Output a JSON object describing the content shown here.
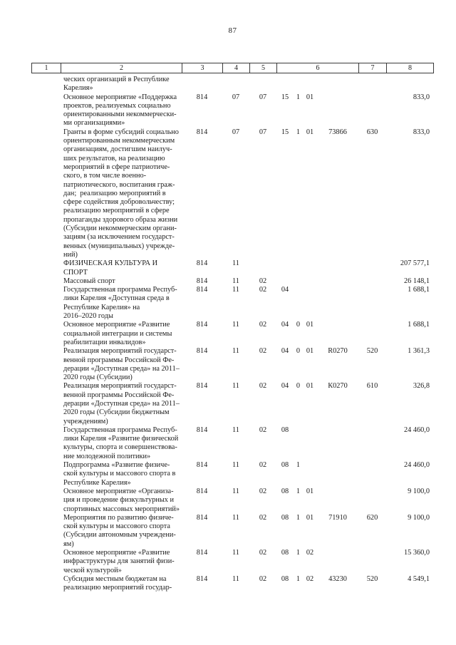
{
  "page": {
    "number": "87"
  },
  "table": {
    "headers": [
      "1",
      "2",
      "3",
      "4",
      "5",
      "6",
      "7",
      "8"
    ],
    "rows": [
      {
        "name": "ческих организаций в Республике\nКарелия»",
        "c3": "",
        "c4": "",
        "c5": "",
        "cs": [
          "",
          "",
          "",
          ""
        ],
        "c7": "",
        "c8": ""
      },
      {
        "name": "Основное мероприятие «Поддержка\nпроектов, реализуемых социально\nориентированными некоммерчески-\nми организациями»",
        "c3": "814",
        "c4": "07",
        "c5": "07",
        "cs": [
          "15",
          "1",
          "01",
          ""
        ],
        "c7": "",
        "c8": "833,0"
      },
      {
        "name": "Гранты в форме субсидий социально\nориентированным некоммерческим\nорганизациям, достигшим наилуч-\nших результатов, на реализацию\nмероприятий в сфере патриотиче-\nского, в том числе военно-\nпатриотического, воспитания граж-\nдан;  реализацию мероприятий в\nсфере содействия добровольчеству;\nреализацию мероприятий в сфере\nпропаганды здорового образа жизни\n(Субсидии некоммерческим органи-\nзациям (за исключением государст-\nвенных (муниципальных) учрежде-\nний)",
        "c3": "814",
        "c4": "07",
        "c5": "07",
        "cs": [
          "15",
          "1",
          "01",
          "73866"
        ],
        "c7": "630",
        "c8": "833,0"
      },
      {
        "name": "ФИЗИЧЕСКАЯ КУЛЬТУРА И\nСПОРТ",
        "c3": "814",
        "c4": "11",
        "c5": "",
        "cs": [
          "",
          "",
          "",
          ""
        ],
        "c7": "",
        "c8": "207 577,1"
      },
      {
        "name": "Массовый спорт",
        "c3": "814",
        "c4": "11",
        "c5": "02",
        "cs": [
          "",
          "",
          "",
          ""
        ],
        "c7": "",
        "c8": "26 148,1"
      },
      {
        "name": "Государственная программа Респуб-\nлики Карелия «Доступная среда в\nРеспублике Карелия» на\n2016–2020 годы",
        "c3": "814",
        "c4": "11",
        "c5": "02",
        "cs": [
          "04",
          "",
          "",
          ""
        ],
        "c7": "",
        "c8": "1 688,1"
      },
      {
        "name": "Основное мероприятие «Развитие\nсоциальной интеграции и системы\nреабилитации инвалидов»",
        "c3": "814",
        "c4": "11",
        "c5": "02",
        "cs": [
          "04",
          "0",
          "01",
          ""
        ],
        "c7": "",
        "c8": "1 688,1"
      },
      {
        "name": "Реализация мероприятий государст-\nвенной программы Российской Фе-\nдерации «Доступная среда» на 2011–\n2020 годы (Субсидии)",
        "c3": "814",
        "c4": "11",
        "c5": "02",
        "cs": [
          "04",
          "0",
          "01",
          "R0270"
        ],
        "c7": "520",
        "c8": "1 361,3"
      },
      {
        "name": "Реализация мероприятий государст-\nвенной программы Российской Фе-\nдерации «Доступная среда» на 2011–\n2020 годы (Субсидии бюджетным\nучреждениям)",
        "c3": "814",
        "c4": "11",
        "c5": "02",
        "cs": [
          "04",
          "0",
          "01",
          "К0270"
        ],
        "c7": "610",
        "c8": "326,8"
      },
      {
        "name": "Государственная программа Респуб-\nлики Карелия «Развитие физической\nкультуры, спорта и совершенствова-\nние молодежной политики»",
        "c3": "814",
        "c4": "11",
        "c5": "02",
        "cs": [
          "08",
          "",
          "",
          ""
        ],
        "c7": "",
        "c8": "24 460,0"
      },
      {
        "name": "Подпрограмма «Развитие физиче-\nской культуры и массового спорта в\nРеспублике Карелия»",
        "c3": "814",
        "c4": "11",
        "c5": "02",
        "cs": [
          "08",
          "1",
          "",
          ""
        ],
        "c7": "",
        "c8": "24 460,0"
      },
      {
        "name": "Основное мероприятие «Организа-\nция и проведение физкультурных и\nспортивных массовых мероприятий»",
        "c3": "814",
        "c4": "11",
        "c5": "02",
        "cs": [
          "08",
          "1",
          "01",
          ""
        ],
        "c7": "",
        "c8": "9 100,0"
      },
      {
        "name": "Мероприятия по развитию физиче-\nской культуры и массового спорта\n(Субсидии автономным учреждени-\nям)",
        "c3": "814",
        "c4": "11",
        "c5": "02",
        "cs": [
          "08",
          "1",
          "01",
          "71910"
        ],
        "c7": "620",
        "c8": "9 100,0"
      },
      {
        "name": "Основное мероприятие «Развитие\nинфраструктуры для занятий физи-\nческой культурой»",
        "c3": "814",
        "c4": "11",
        "c5": "02",
        "cs": [
          "08",
          "1",
          "02",
          ""
        ],
        "c7": "",
        "c8": "15 360,0"
      },
      {
        "name": "Субсидия местным бюджетам на\nреализацию мероприятий государ-",
        "c3": "814",
        "c4": "11",
        "c5": "02",
        "cs": [
          "08",
          "1",
          "02",
          "43230"
        ],
        "c7": "520",
        "c8": "4 549,1"
      }
    ]
  }
}
